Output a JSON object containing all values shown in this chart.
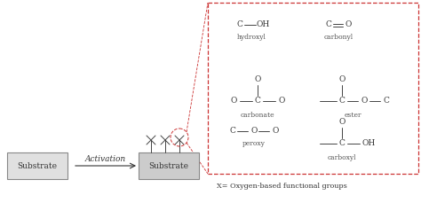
{
  "bg_color": "#ffffff",
  "text_color": "#333333",
  "bond_color": "#444444",
  "red_dash_color": "#cc3333",
  "box_fill": "#d4d4d4",
  "box_edge": "#888888",
  "activation_text": "Activation",
  "substrate_text": "Substrate",
  "x_label": "X= Oxygen-based functional groups",
  "font_formula": 6.5,
  "font_label": 5.5,
  "font_substrate": 6.5,
  "font_activation": 6.5
}
